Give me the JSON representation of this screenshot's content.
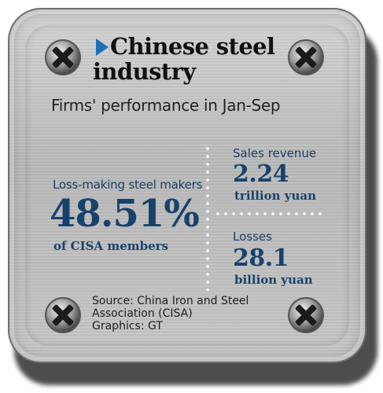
{
  "title": {
    "line1": "Chinese steel",
    "line2": "industry"
  },
  "subtitle": "Firms' performance in Jan-Sep",
  "loss_making": {
    "label": "Loss-making steel makers",
    "value": "48.51%",
    "sub": "of CISA members"
  },
  "sales_revenue": {
    "label": "Sales revenue",
    "value": "2.24",
    "unit": "trillion yuan"
  },
  "losses": {
    "label": "Losses",
    "value": "28.1",
    "unit": "billion yuan"
  },
  "source": {
    "line1": "Source: China Iron and Steel",
    "line2": "Association (CISA)",
    "line3": "Graphics: GT"
  },
  "colors": {
    "accent": "#1f6fb5",
    "text_navy": "#17426b",
    "plate": "#c4c4c4"
  },
  "icons": {
    "title_marker": "triangle-arrow-icon",
    "screws": "screw-icon"
  }
}
